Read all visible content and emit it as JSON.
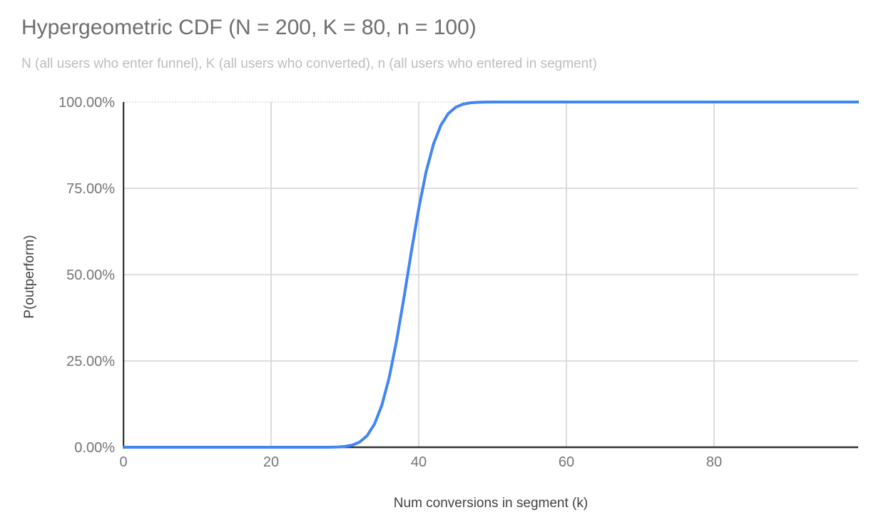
{
  "chart_data": {
    "type": "line",
    "title": "Hypergeometric CDF (N = 200, K = 80, n = 100)",
    "subtitle": "N (all users who enter funnel), K (all users who converted), n (all users who entered in segment)",
    "xlabel": "Num conversions in segment (k)",
    "ylabel": "P(outperform)",
    "xlim": [
      0,
      100
    ],
    "ylim": [
      0,
      1
    ],
    "xticks": [
      0,
      20,
      40,
      60,
      80
    ],
    "xtick_labels": [
      "0",
      "20",
      "40",
      "60",
      "80"
    ],
    "yticks": [
      0,
      0.25,
      0.5,
      0.75,
      1
    ],
    "ytick_labels": [
      "0.00%",
      "25.00%",
      "50.00%",
      "75.00%",
      "100.00%"
    ],
    "grid": true,
    "legend_position": "none",
    "series": [
      {
        "name": "P(outperform)",
        "color": "#4285f4",
        "points": [
          [
            0,
            0
          ],
          [
            5,
            0
          ],
          [
            10,
            0
          ],
          [
            15,
            0
          ],
          [
            20,
            0
          ],
          [
            25,
            0
          ],
          [
            27,
            0.0001
          ],
          [
            28,
            0.0002
          ],
          [
            29,
            0.0008
          ],
          [
            30,
            0.0023
          ],
          [
            31,
            0.0062
          ],
          [
            32,
            0.0151
          ],
          [
            33,
            0.0334
          ],
          [
            34,
            0.0668
          ],
          [
            35,
            0.1217
          ],
          [
            36,
            0.2023
          ],
          [
            37,
            0.3085
          ],
          [
            38,
            0.4338
          ],
          [
            39,
            0.5662
          ],
          [
            40,
            0.6915
          ],
          [
            41,
            0.7977
          ],
          [
            42,
            0.8783
          ],
          [
            43,
            0.9332
          ],
          [
            44,
            0.9666
          ],
          [
            45,
            0.9849
          ],
          [
            46,
            0.9938
          ],
          [
            47,
            0.9977
          ],
          [
            48,
            0.9992
          ],
          [
            49,
            0.9997
          ],
          [
            50,
            0.9999
          ],
          [
            51,
            1
          ],
          [
            55,
            1
          ],
          [
            60,
            1
          ],
          [
            65,
            1
          ],
          [
            70,
            1
          ],
          [
            75,
            1
          ],
          [
            80,
            1
          ],
          [
            85,
            1
          ],
          [
            90,
            1
          ],
          [
            95,
            1
          ],
          [
            100,
            1
          ]
        ]
      }
    ]
  },
  "colors": {
    "background": "#ffffff",
    "title": "#6e6e6e",
    "subtitle": "#bdbdbd",
    "tick_label": "#757575",
    "axis_title": "#424242",
    "gridline": "#d4d4d4",
    "top_gridline": "#dadada",
    "axis_line": "#333333",
    "line": "#4285f4"
  }
}
